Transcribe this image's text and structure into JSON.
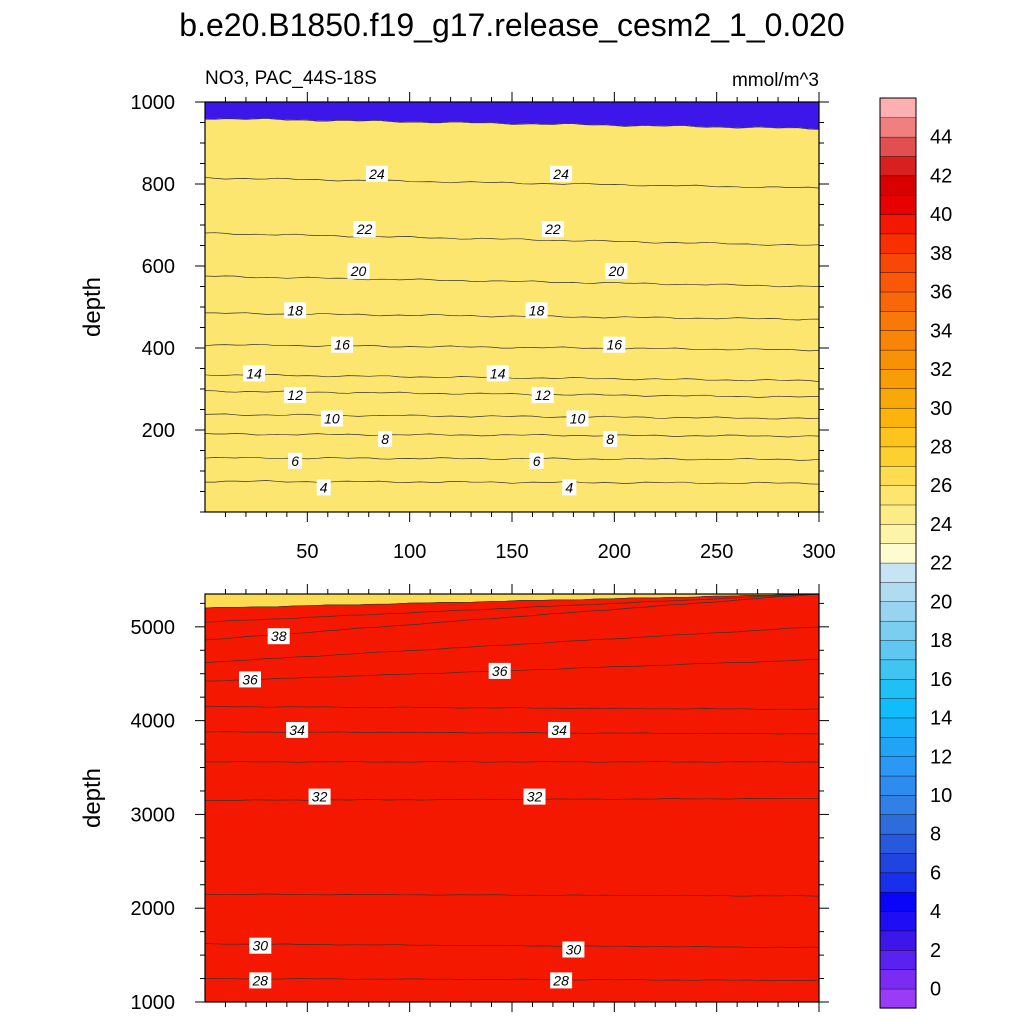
{
  "title": "b.e20.B1850.f19_g17.release_cesm2_1_0.020",
  "subtitle_left": "NO3, PAC_44S-18S",
  "subtitle_right": "mmol/m^3",
  "chart_data": [
    {
      "type": "heatmap",
      "panel": "upper",
      "variable": "NO3",
      "region": "PAC_44S-18S",
      "units": "mmol/m^3",
      "xlabel": "",
      "ylabel": "depth",
      "xlim": [
        0,
        300
      ],
      "ylim": [
        1000,
        0
      ],
      "x_ticks": [
        50,
        100,
        150,
        200,
        250,
        300
      ],
      "y_ticks": [
        200,
        400,
        600,
        800,
        1000
      ],
      "contours": [
        {
          "level": 4,
          "left": 75,
          "right": 70
        },
        {
          "level": 6,
          "left": 132,
          "right": 128
        },
        {
          "level": 8,
          "left": 190,
          "right": 185
        },
        {
          "level": 10,
          "left": 238,
          "right": 228
        },
        {
          "level": 12,
          "left": 295,
          "right": 280
        },
        {
          "level": 14,
          "left": 335,
          "right": 320
        },
        {
          "level": 16,
          "left": 408,
          "right": 395
        },
        {
          "level": 18,
          "left": 485,
          "right": 470
        },
        {
          "level": 20,
          "left": 575,
          "right": 550
        },
        {
          "level": 22,
          "left": 680,
          "right": 650
        },
        {
          "level": 24,
          "left": 815,
          "right": 790
        },
        {
          "level": 26,
          "left": 960,
          "right": 935
        }
      ],
      "contour_labels": [
        {
          "text": "4",
          "x": 58,
          "y": 60
        },
        {
          "text": "4",
          "x": 178,
          "y": 60
        },
        {
          "text": "6",
          "x": 44,
          "y": 125
        },
        {
          "text": "6",
          "x": 162,
          "y": 125
        },
        {
          "text": "8",
          "x": 88,
          "y": 178
        },
        {
          "text": "8",
          "x": 198,
          "y": 178
        },
        {
          "text": "10",
          "x": 62,
          "y": 228
        },
        {
          "text": "10",
          "x": 182,
          "y": 228
        },
        {
          "text": "12",
          "x": 44,
          "y": 285
        },
        {
          "text": "12",
          "x": 165,
          "y": 285
        },
        {
          "text": "14",
          "x": 24,
          "y": 338
        },
        {
          "text": "14",
          "x": 143,
          "y": 338
        },
        {
          "text": "16",
          "x": 67,
          "y": 408
        },
        {
          "text": "16",
          "x": 200,
          "y": 408
        },
        {
          "text": "18",
          "x": 44,
          "y": 492
        },
        {
          "text": "18",
          "x": 162,
          "y": 492
        },
        {
          "text": "20",
          "x": 75,
          "y": 588
        },
        {
          "text": "20",
          "x": 201,
          "y": 588
        },
        {
          "text": "22",
          "x": 78,
          "y": 690
        },
        {
          "text": "22",
          "x": 170,
          "y": 690
        },
        {
          "text": "24",
          "x": 84,
          "y": 825
        },
        {
          "text": "24",
          "x": 174,
          "y": 825
        }
      ]
    },
    {
      "type": "heatmap",
      "panel": "lower",
      "variable": "NO3",
      "region": "PAC_44S-18S",
      "units": "mmol/m^3",
      "xlabel": "",
      "ylabel": "depth",
      "xlim": [
        0,
        300
      ],
      "ylim": [
        5350,
        1000
      ],
      "x_ticks": [
        50,
        100,
        150,
        200,
        250,
        300
      ],
      "y_ticks": [
        1000,
        2000,
        3000,
        4000,
        5000
      ],
      "contours": [
        {
          "level": 28,
          "left": 1250,
          "right": 1230
        },
        {
          "level": 30,
          "left": 1620,
          "right": 1580
        },
        {
          "level": 31,
          "left": 2150,
          "right": 2130
        },
        {
          "level": 32,
          "left": 3150,
          "right": 3170
        },
        {
          "level": 33,
          "left": 3560,
          "right": 3560
        },
        {
          "level": 34,
          "left": 3880,
          "right": 3860
        },
        {
          "level": 35,
          "left": 4150,
          "right": 4120
        },
        {
          "level": 36,
          "left": 4420,
          "right": 4650
        },
        {
          "level": 37,
          "left": 4620,
          "right": 5000
        },
        {
          "level": 38,
          "left": 4860,
          "right": 5350
        },
        {
          "level": 39,
          "left": 5050,
          "right": 5350
        },
        {
          "level": 40,
          "left": 5200,
          "right": 5350
        }
      ],
      "contour_labels": [
        {
          "text": "28",
          "x": 27,
          "y": 1230
        },
        {
          "text": "28",
          "x": 174,
          "y": 1230
        },
        {
          "text": "30",
          "x": 27,
          "y": 1600
        },
        {
          "text": "30",
          "x": 180,
          "y": 1560
        },
        {
          "text": "32",
          "x": 56,
          "y": 3190
        },
        {
          "text": "32",
          "x": 161,
          "y": 3190
        },
        {
          "text": "34",
          "x": 45,
          "y": 3900
        },
        {
          "text": "34",
          "x": 173,
          "y": 3900
        },
        {
          "text": "36",
          "x": 22,
          "y": 4440
        },
        {
          "text": "36",
          "x": 144,
          "y": 4530
        },
        {
          "text": "38",
          "x": 36,
          "y": 4900
        }
      ]
    },
    {
      "type": "colorbar",
      "levels": [
        0,
        1,
        2,
        3,
        4,
        5,
        6,
        7,
        8,
        9,
        10,
        11,
        12,
        13,
        14,
        15,
        16,
        17,
        18,
        19,
        20,
        21,
        22,
        23,
        24,
        25,
        26,
        27,
        28,
        29,
        30,
        31,
        32,
        33,
        34,
        35,
        36,
        37,
        38,
        39,
        40,
        41,
        42,
        43,
        44,
        45
      ],
      "tick_labels": [
        "0",
        "2",
        "4",
        "6",
        "8",
        "10",
        "12",
        "14",
        "16",
        "18",
        "20",
        "22",
        "24",
        "26",
        "28",
        "30",
        "32",
        "34",
        "36",
        "38",
        "40",
        "42",
        "44"
      ],
      "colors": [
        "#9a3cf5",
        "#7b2cf2",
        "#5a22ee",
        "#3d16ea",
        "#1f0df4",
        "#0a05f8",
        "#1830ec",
        "#2044e0",
        "#2858dc",
        "#2e6cdc",
        "#3080e6",
        "#2e8cf0",
        "#2a98f4",
        "#22a4f6",
        "#18b0f8",
        "#10bcfa",
        "#20c0f6",
        "#40c4f0",
        "#60c8f0",
        "#7ccef0",
        "#98d4f0",
        "#b0dcf2",
        "#c6e4f4",
        "#fcfcd0",
        "#fcf4a8",
        "#fcec88",
        "#fce670",
        "#fcdc50",
        "#fcd030",
        "#fcc41c",
        "#fcb40c",
        "#f8a808",
        "#f89c08",
        "#f89008",
        "#f88408",
        "#f87808",
        "#f86808",
        "#f85808",
        "#f84808",
        "#f83000",
        "#f41800",
        "#e80000",
        "#d80000",
        "#d82020",
        "#e05050",
        "#f08080",
        "#fcb0b0"
      ]
    }
  ]
}
